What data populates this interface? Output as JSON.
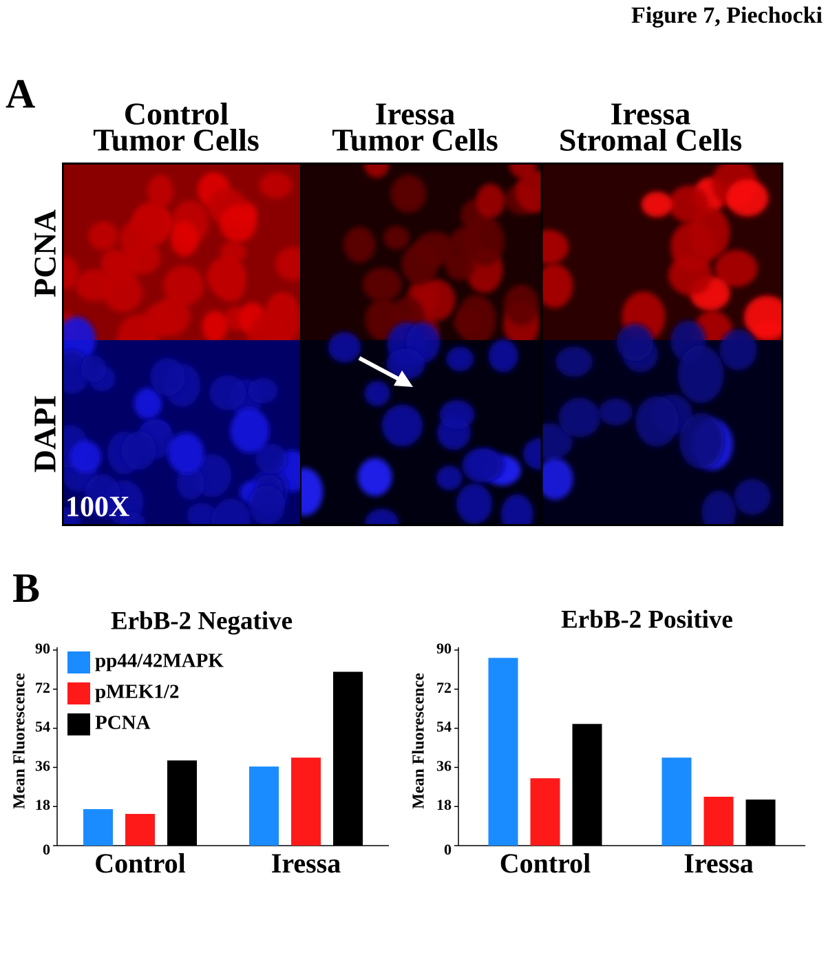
{
  "title": "Figure 7, Piechocki",
  "panel_a": {
    "label": "A",
    "columns": [
      [
        "Control",
        "Tumor Cells"
      ],
      [
        "Iressa",
        "Tumor Cells"
      ],
      [
        "Iressa",
        "Stromal Cells"
      ]
    ],
    "rows": [
      "PCNA",
      "DAPI"
    ],
    "magnification": "100X"
  },
  "panel_b": {
    "label": "B"
  },
  "chart_data": [
    {
      "type": "bar",
      "title": "ErbB-2 Negative",
      "y_label": "Mean Fluorescence",
      "categories": [
        "Control",
        "Iressa"
      ],
      "series": [
        {
          "name": "pp44/42MAPK",
          "color": "#1a8cff",
          "values": [
            16.8,
            36.4
          ]
        },
        {
          "name": "pMEK1/2",
          "color": "#ff1a1a",
          "values": [
            14.6,
            40.5
          ]
        },
        {
          "name": "PCNA",
          "color": "#000000",
          "values": [
            39.2,
            80
          ]
        }
      ],
      "ylim": [
        0,
        90
      ],
      "yticks": [
        0,
        18,
        36,
        54,
        72,
        90
      ],
      "legend": "upper left"
    },
    {
      "type": "bar",
      "title": "ErbB-2 Positive",
      "y_label": "Mean Fluorescence",
      "categories": [
        "Control",
        "Iressa"
      ],
      "series": [
        {
          "color": "#1a8cff",
          "values": [
            86.4,
            40.5
          ]
        },
        {
          "color": "#ff1a1a",
          "values": [
            31,
            22.5
          ]
        },
        {
          "color": "#000000",
          "values": [
            56,
            21.2
          ]
        }
      ],
      "ylim": [
        0,
        90
      ],
      "yticks": [
        0,
        18,
        36,
        54,
        72,
        90
      ]
    }
  ]
}
